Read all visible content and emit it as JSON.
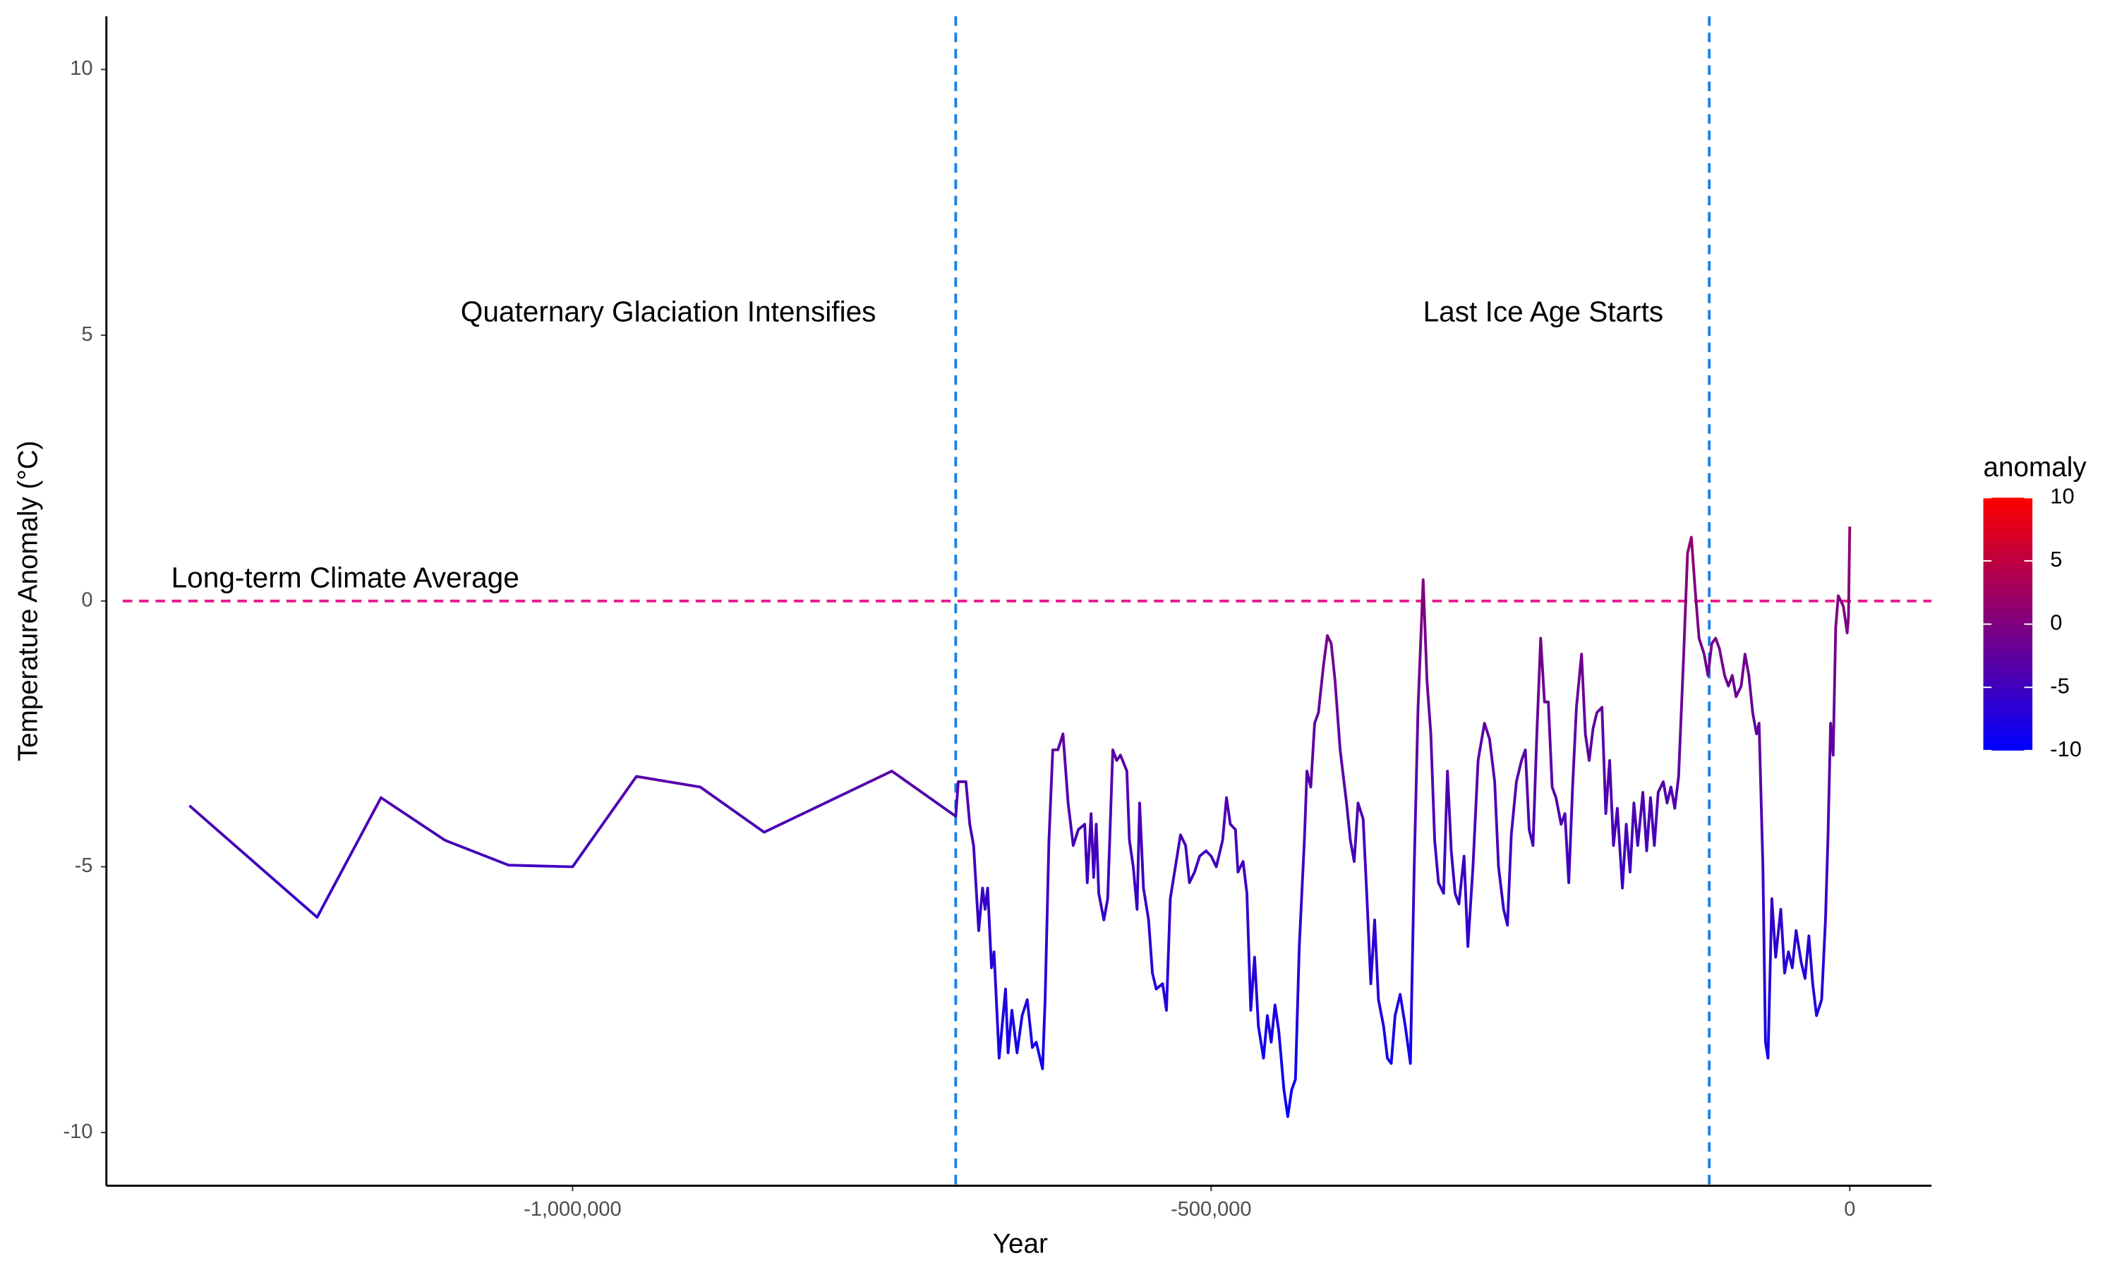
{
  "chart_data": {
    "type": "line",
    "xlabel": "Year",
    "ylabel": "Temperature Anomaly (°C)",
    "xlim": [
      -1365000,
      64000
    ],
    "ylim": [
      -11,
      11
    ],
    "xticks": [
      {
        "value": -1000000,
        "label": "-1,000,000"
      },
      {
        "value": -500000,
        "label": "-500,000"
      },
      0
    ],
    "yticks": [
      -10,
      -5,
      0,
      5,
      10
    ],
    "hline": {
      "y": 0,
      "color": "#e6198c"
    },
    "vlines": {
      "x": [
        -700000,
        -110000
      ],
      "color": "#1a80e5"
    },
    "annotations": [
      {
        "text": "Long-term Climate Average",
        "x": -1178000,
        "y": 0.4
      },
      {
        "text": "Quaternary Glaciation Intensifies",
        "x": -925000,
        "y": 5.4
      },
      {
        "text": "Last Ice Age Starts",
        "x": -240000,
        "y": 5.4
      }
    ],
    "color_scale": {
      "name": "anomaly",
      "low": "#0000ff",
      "high": "#ff0000",
      "limits": [
        -10,
        10
      ],
      "breaks": [
        10,
        5,
        0,
        -5,
        -10
      ]
    },
    "x": [
      -1300000,
      -1200000,
      -1150000,
      -1100000,
      -1050000,
      -1000000,
      -950000,
      -900000,
      -850000,
      -750000,
      -700000,
      -698000,
      -692000,
      -689000,
      -686000,
      -682000,
      -679000,
      -677000,
      -675000,
      -672000,
      -670000,
      -666000,
      -661000,
      -659000,
      -656000,
      -652000,
      -648000,
      -644000,
      -640000,
      -637000,
      -632000,
      -630000,
      -627000,
      -624000,
      -620000,
      -616000,
      -612000,
      -608000,
      -604000,
      -599000,
      -597000,
      -594000,
      -592000,
      -590000,
      -588000,
      -584000,
      -581000,
      -577000,
      -574000,
      -571000,
      -566000,
      -564000,
      -561000,
      -558000,
      -556000,
      -553000,
      -549000,
      -546000,
      -543000,
      -538000,
      -535000,
      -532000,
      -528000,
      -524000,
      -520000,
      -517000,
      -513000,
      -509000,
      -504000,
      -500000,
      -496000,
      -491000,
      -488000,
      -485000,
      -481000,
      -479000,
      -475000,
      -472000,
      -469000,
      -466000,
      -463000,
      -459000,
      -456000,
      -453000,
      -450000,
      -447000,
      -443000,
      -440000,
      -437000,
      -434000,
      -431000,
      -427000,
      -425000,
      -422000,
      -419000,
      -416000,
      -412000,
      -409000,
      -406000,
      -403000,
      -399000,
      -394000,
      -391000,
      -388000,
      -385000,
      -381000,
      -378000,
      -375000,
      -372000,
      -369000,
      -365000,
      -362000,
      -359000,
      -356000,
      -352000,
      -348000,
      -344000,
      -341000,
      -338000,
      -334000,
      -331000,
      -328000,
      -325000,
      -322000,
      -318000,
      -315000,
      -312000,
      -309000,
      -306000,
      -302000,
      -299000,
      -295000,
      -291000,
      -286000,
      -282000,
      -278000,
      -275000,
      -271000,
      -268000,
      -265000,
      -261000,
      -257000,
      -254000,
      -251000,
      -248000,
      -245000,
      -242000,
      -239000,
      -236000,
      -233000,
      -230000,
      -226000,
      -223000,
      -220000,
      -217000,
      -214000,
      -210000,
      -207000,
      -204000,
      -201000,
      -198000,
      -194000,
      -191000,
      -188000,
      -185000,
      -182000,
      -178000,
      -175000,
      -172000,
      -169000,
      -166000,
      -162000,
      -159000,
      -156000,
      -153000,
      -150000,
      -146000,
      -143000,
      -140000,
      -137000,
      -134000,
      -130000,
      -127000,
      -124000,
      -121000,
      -118000,
      -114000,
      -111000,
      -108000,
      -105000,
      -102000,
      -98000,
      -95000,
      -92000,
      -89000,
      -85000,
      -82000,
      -79000,
      -76000,
      -73000,
      -71000,
      -68000,
      -66000,
      -64000,
      -61000,
      -58000,
      -54000,
      -51000,
      -48000,
      -45000,
      -42000,
      -38000,
      -35000,
      -32000,
      -29000,
      -26000,
      -22000,
      -19000,
      -17000,
      -15000,
      -13000,
      -11000,
      -9000,
      -5000,
      -2000,
      -1000,
      0
    ],
    "values": [
      -3.85,
      -5.95,
      -3.7,
      -4.5,
      -4.97,
      -5.0,
      -3.3,
      -3.5,
      -4.35,
      -3.2,
      -4.05,
      -3.4,
      -3.4,
      -4.2,
      -4.6,
      -6.2,
      -5.4,
      -5.8,
      -5.4,
      -6.9,
      -6.6,
      -8.6,
      -7.3,
      -8.5,
      -7.7,
      -8.5,
      -7.8,
      -7.5,
      -8.4,
      -8.3,
      -8.8,
      -7.5,
      -4.5,
      -2.8,
      -2.8,
      -2.5,
      -3.8,
      -4.6,
      -4.3,
      -4.2,
      -5.3,
      -4.0,
      -5.2,
      -4.2,
      -5.5,
      -6.0,
      -5.6,
      -2.8,
      -3.0,
      -2.9,
      -3.2,
      -4.5,
      -5.0,
      -5.8,
      -3.8,
      -5.4,
      -6.0,
      -7.0,
      -7.3,
      -7.2,
      -7.7,
      -5.6,
      -5.0,
      -4.4,
      -4.6,
      -5.3,
      -5.1,
      -4.8,
      -4.7,
      -4.8,
      -5.0,
      -4.5,
      -3.7,
      -4.2,
      -4.3,
      -5.1,
      -4.9,
      -5.5,
      -7.7,
      -6.7,
      -8.0,
      -8.6,
      -7.8,
      -8.3,
      -7.6,
      -8.1,
      -9.2,
      -9.7,
      -9.2,
      -9.0,
      -6.5,
      -4.5,
      -3.2,
      -3.5,
      -2.3,
      -2.1,
      -1.2,
      -0.65,
      -0.8,
      -1.5,
      -2.8,
      -3.8,
      -4.5,
      -4.9,
      -3.8,
      -4.1,
      -5.6,
      -7.2,
      -6.0,
      -7.5,
      -8.0,
      -8.6,
      -8.7,
      -7.8,
      -7.4,
      -8.0,
      -8.7,
      -5.0,
      -2.0,
      0.4,
      -1.5,
      -2.5,
      -4.5,
      -5.3,
      -5.5,
      -3.2,
      -4.7,
      -5.5,
      -5.7,
      -4.8,
      -6.5,
      -5.0,
      -3.0,
      -2.3,
      -2.6,
      -3.4,
      -5.0,
      -5.8,
      -6.1,
      -4.4,
      -3.4,
      -3.0,
      -2.8,
      -4.3,
      -4.6,
      -2.5,
      -0.7,
      -1.9,
      -1.9,
      -3.5,
      -3.7,
      -4.2,
      -4.0,
      -5.3,
      -3.5,
      -2.0,
      -1.0,
      -2.5,
      -3.0,
      -2.4,
      -2.1,
      -2.0,
      -4.0,
      -3.0,
      -4.6,
      -3.9,
      -5.4,
      -4.2,
      -5.1,
      -3.8,
      -4.6,
      -3.6,
      -4.7,
      -3.7,
      -4.6,
      -3.6,
      -3.4,
      -3.8,
      -3.5,
      -3.9,
      -3.3,
      -1.0,
      0.9,
      1.2,
      0.2,
      -0.7,
      -1.0,
      -1.4,
      -0.8,
      -0.7,
      -0.9,
      -1.4,
      -1.6,
      -1.4,
      -1.8,
      -1.6,
      -1.0,
      -1.4,
      -2.1,
      -2.5,
      -2.3,
      -5.0,
      -8.3,
      -8.6,
      -5.6,
      -6.7,
      -5.8,
      -7.0,
      -6.6,
      -6.9,
      -6.2,
      -6.8,
      -7.1,
      -6.3,
      -7.2,
      -7.8,
      -7.5,
      -6.0,
      -4.4,
      -2.3,
      -2.9,
      -0.5,
      0.1,
      -0.1,
      -0.6,
      -0.3,
      1.4
    ]
  }
}
